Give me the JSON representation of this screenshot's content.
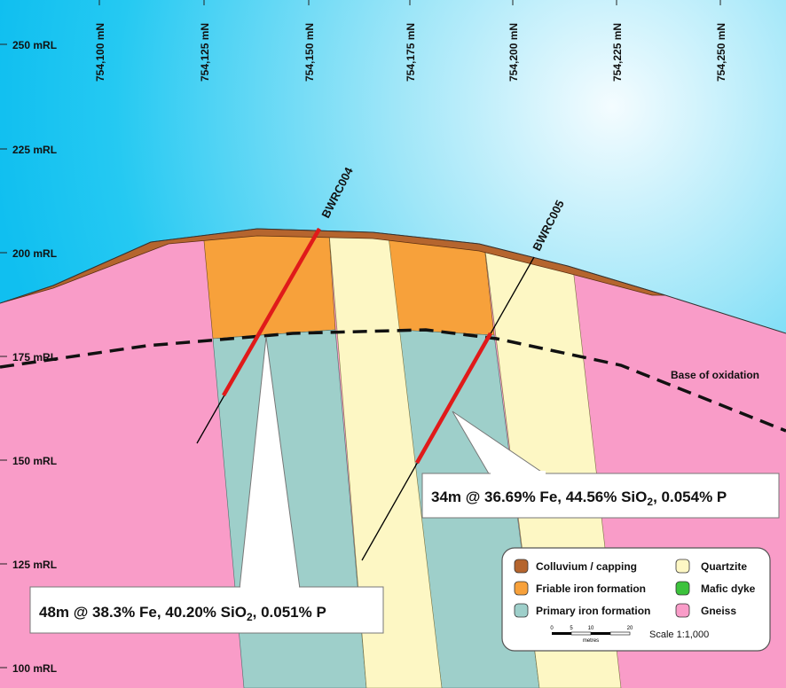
{
  "section": {
    "colors": {
      "sky_top": "#1ec8f2",
      "sky_mid": "#7ddcf5",
      "sky_light": "#e8f8fd",
      "colluvium": "#b5652e",
      "friable": "#f7a13b",
      "primary": "#9ecfca",
      "quartzite": "#fdf7c4",
      "mafic": "#3cc23c",
      "gneiss": "#f99cc8",
      "drill_intercept": "#e01a1a",
      "drill_trace": "#000000"
    },
    "rl_axis": {
      "labels": [
        "250 mRL",
        "225 mRL",
        "200 mRL",
        "175 mRL",
        "150 mRL",
        "125 mRL",
        "100 mRL"
      ]
    },
    "northing_axis": {
      "labels": [
        "754,100 mN",
        "754,125 mN",
        "754,150 mN",
        "754,175 mN",
        "754,200 mN",
        "754,225 mN",
        "754,250 mN"
      ]
    },
    "drillholes": [
      {
        "id": "BWRC004"
      },
      {
        "id": "BWRC005"
      }
    ],
    "oxidation_label": "Base of oxidation",
    "callouts": {
      "bwrc004": {
        "lead": "48m @ 38.3% Fe, 40.20% SiO",
        "sub": "2",
        "tail": ", 0.051% P"
      },
      "bwrc005": {
        "lead": "34m @ 36.69% Fe, 44.56% SiO",
        "sub": "2",
        "tail": ", 0.054% P"
      }
    },
    "legend": {
      "items": [
        {
          "label": "Colluvium / capping",
          "color_key": "colluvium"
        },
        {
          "label": "Friable iron formation",
          "color_key": "friable"
        },
        {
          "label": "Primary iron formation",
          "color_key": "primary"
        },
        {
          "label": "Quartzite",
          "color_key": "quartzite"
        },
        {
          "label": "Mafic dyke",
          "color_key": "mafic"
        },
        {
          "label": "Gneiss",
          "color_key": "gneiss"
        }
      ],
      "scale_ticks": [
        "0",
        "5",
        "10",
        "20"
      ],
      "scale_unit": "metres",
      "scale_text": "Scale 1:1,000"
    }
  }
}
